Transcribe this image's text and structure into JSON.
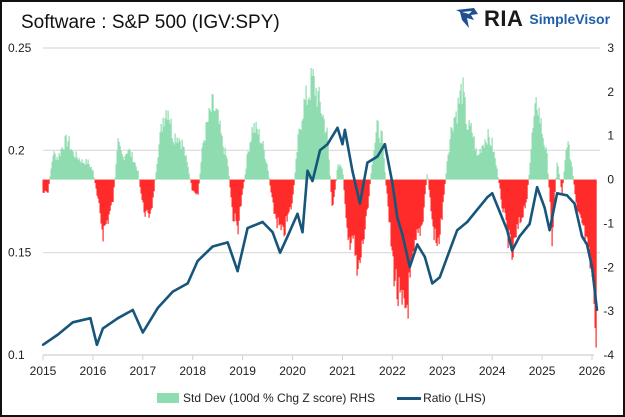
{
  "chart_data": {
    "type": "bar+line",
    "title": "Software : S&P 500 (IGV:SPY)",
    "logo": {
      "text": "RIA",
      "subtext": "SimpleVisor"
    },
    "x_ticks": [
      "2015",
      "2016",
      "2017",
      "2018",
      "2019",
      "2020",
      "2021",
      "2022",
      "2023",
      "2024",
      "2025",
      "2026"
    ],
    "xlim": [
      2015,
      2026.1
    ],
    "left_axis": {
      "ylim": [
        0.1,
        0.25
      ],
      "ticks": [
        "0.1",
        "0.15",
        "0.2",
        "0.25"
      ]
    },
    "right_axis": {
      "ylim": [
        -4,
        3
      ],
      "ticks": [
        "3",
        "2",
        "1",
        "0",
        "-1",
        "-2",
        "-3",
        "-4"
      ]
    },
    "grid": "horizontal",
    "legend_position": "bottom",
    "colors": {
      "positive": "#8fdcb0",
      "negative": "#ff2a2a",
      "ratio": "#17567a"
    },
    "series": [
      {
        "name": "Std Dev (100d % Chg Z score) RHS",
        "type": "bar",
        "axis": "right",
        "points": [
          [
            2015.0,
            -0.3
          ],
          [
            2015.1,
            -0.3
          ],
          [
            2015.2,
            0.6
          ],
          [
            2015.3,
            0.5
          ],
          [
            2015.4,
            0.8
          ],
          [
            2015.5,
            0.9
          ],
          [
            2015.6,
            0.6
          ],
          [
            2015.7,
            0.5
          ],
          [
            2015.8,
            0.4
          ],
          [
            2015.9,
            0.4
          ],
          [
            2016.0,
            0.2
          ],
          [
            2016.1,
            -0.5
          ],
          [
            2016.2,
            -1.2
          ],
          [
            2016.3,
            -0.9
          ],
          [
            2016.4,
            -0.5
          ],
          [
            2016.5,
            0.8
          ],
          [
            2016.6,
            0.5
          ],
          [
            2016.7,
            0.7
          ],
          [
            2016.8,
            0.5
          ],
          [
            2016.9,
            0.2
          ],
          [
            2017.0,
            -0.6
          ],
          [
            2017.1,
            -0.9
          ],
          [
            2017.2,
            -0.5
          ],
          [
            2017.3,
            0.6
          ],
          [
            2017.4,
            1.4
          ],
          [
            2017.5,
            1.7
          ],
          [
            2017.6,
            1.0
          ],
          [
            2017.7,
            1.0
          ],
          [
            2017.8,
            0.8
          ],
          [
            2017.9,
            0.3
          ],
          [
            2018.0,
            -0.3
          ],
          [
            2018.1,
            -0.4
          ],
          [
            2018.2,
            0.8
          ],
          [
            2018.3,
            1.3
          ],
          [
            2018.4,
            1.7
          ],
          [
            2018.5,
            1.4
          ],
          [
            2018.6,
            0.8
          ],
          [
            2018.7,
            0.4
          ],
          [
            2018.8,
            -0.8
          ],
          [
            2018.9,
            -1.1
          ],
          [
            2019.0,
            -0.3
          ],
          [
            2019.1,
            0.6
          ],
          [
            2019.2,
            1.2
          ],
          [
            2019.3,
            1.1
          ],
          [
            2019.4,
            0.8
          ],
          [
            2019.5,
            0.3
          ],
          [
            2019.6,
            -0.6
          ],
          [
            2019.7,
            -1.0
          ],
          [
            2019.8,
            -1.3
          ],
          [
            2019.9,
            -0.9
          ],
          [
            2020.0,
            -0.5
          ],
          [
            2020.1,
            0.8
          ],
          [
            2020.2,
            1.6
          ],
          [
            2020.3,
            1.9
          ],
          [
            2020.4,
            2.3
          ],
          [
            2020.5,
            1.9
          ],
          [
            2020.6,
            1.5
          ],
          [
            2020.7,
            1.0
          ],
          [
            2020.8,
            -0.8
          ],
          [
            2020.9,
            0.3
          ],
          [
            2021.0,
            0.3
          ],
          [
            2021.1,
            -1.5
          ],
          [
            2021.2,
            -1.2
          ],
          [
            2021.3,
            -2.3
          ],
          [
            2021.4,
            -1.5
          ],
          [
            2021.5,
            -0.8
          ],
          [
            2021.6,
            0.5
          ],
          [
            2021.7,
            1.2
          ],
          [
            2021.8,
            0.9
          ],
          [
            2021.9,
            -0.5
          ],
          [
            2022.0,
            -1.8
          ],
          [
            2022.1,
            -2.6
          ],
          [
            2022.2,
            -3.1
          ],
          [
            2022.3,
            -2.8
          ],
          [
            2022.4,
            -2.0
          ],
          [
            2022.5,
            -1.3
          ],
          [
            2022.6,
            -1.0
          ],
          [
            2022.7,
            0.2
          ],
          [
            2022.8,
            -1.0
          ],
          [
            2022.9,
            -1.6
          ],
          [
            2023.0,
            -0.8
          ],
          [
            2023.1,
            0.5
          ],
          [
            2023.2,
            1.3
          ],
          [
            2023.3,
            1.6
          ],
          [
            2023.4,
            2.1
          ],
          [
            2023.5,
            1.2
          ],
          [
            2023.6,
            1.1
          ],
          [
            2023.7,
            0.5
          ],
          [
            2023.8,
            0.8
          ],
          [
            2023.9,
            1.0
          ],
          [
            2024.0,
            0.8
          ],
          [
            2024.1,
            0.2
          ],
          [
            2024.2,
            -0.6
          ],
          [
            2024.3,
            -1.2
          ],
          [
            2024.4,
            -1.8
          ],
          [
            2024.5,
            -1.2
          ],
          [
            2024.6,
            -0.8
          ],
          [
            2024.7,
            -0.4
          ],
          [
            2024.8,
            1.0
          ],
          [
            2024.9,
            1.8
          ],
          [
            2025.0,
            1.1
          ],
          [
            2025.1,
            0.5
          ],
          [
            2025.2,
            -1.3
          ],
          [
            2025.3,
            0.4
          ],
          [
            2025.4,
            -0.3
          ],
          [
            2025.5,
            0.9
          ],
          [
            2025.6,
            0.3
          ],
          [
            2025.7,
            -0.8
          ],
          [
            2025.8,
            -1.0
          ],
          [
            2025.9,
            -1.6
          ],
          [
            2026.0,
            -2.2
          ],
          [
            2026.1,
            -3.5
          ]
        ]
      },
      {
        "name": "Ratio (LHS)",
        "type": "line",
        "axis": "left",
        "points": [
          [
            2015.0,
            0.105
          ],
          [
            2015.3,
            0.11
          ],
          [
            2015.6,
            0.116
          ],
          [
            2015.95,
            0.118
          ],
          [
            2016.08,
            0.105
          ],
          [
            2016.2,
            0.113
          ],
          [
            2016.5,
            0.118
          ],
          [
            2016.8,
            0.122
          ],
          [
            2017.0,
            0.111
          ],
          [
            2017.3,
            0.123
          ],
          [
            2017.6,
            0.131
          ],
          [
            2017.9,
            0.135
          ],
          [
            2018.1,
            0.146
          ],
          [
            2018.4,
            0.153
          ],
          [
            2018.7,
            0.155
          ],
          [
            2018.9,
            0.141
          ],
          [
            2019.1,
            0.162
          ],
          [
            2019.4,
            0.165
          ],
          [
            2019.6,
            0.16
          ],
          [
            2019.75,
            0.15
          ],
          [
            2019.9,
            0.158
          ],
          [
            2020.1,
            0.169
          ],
          [
            2020.2,
            0.16
          ],
          [
            2020.3,
            0.19
          ],
          [
            2020.4,
            0.185
          ],
          [
            2020.55,
            0.2
          ],
          [
            2020.7,
            0.203
          ],
          [
            2020.9,
            0.211
          ],
          [
            2021.0,
            0.203
          ],
          [
            2021.05,
            0.21
          ],
          [
            2021.2,
            0.19
          ],
          [
            2021.35,
            0.174
          ],
          [
            2021.5,
            0.194
          ],
          [
            2021.7,
            0.197
          ],
          [
            2021.85,
            0.203
          ],
          [
            2022.0,
            0.184
          ],
          [
            2022.1,
            0.167
          ],
          [
            2022.2,
            0.159
          ],
          [
            2022.35,
            0.143
          ],
          [
            2022.5,
            0.154
          ],
          [
            2022.65,
            0.148
          ],
          [
            2022.8,
            0.135
          ],
          [
            2022.95,
            0.138
          ],
          [
            2023.1,
            0.148
          ],
          [
            2023.3,
            0.161
          ],
          [
            2023.5,
            0.165
          ],
          [
            2023.7,
            0.171
          ],
          [
            2023.9,
            0.177
          ],
          [
            2024.0,
            0.179
          ],
          [
            2024.15,
            0.17
          ],
          [
            2024.3,
            0.161
          ],
          [
            2024.4,
            0.151
          ],
          [
            2024.55,
            0.158
          ],
          [
            2024.75,
            0.164
          ],
          [
            2024.9,
            0.182
          ],
          [
            2025.05,
            0.172
          ],
          [
            2025.15,
            0.161
          ],
          [
            2025.3,
            0.179
          ],
          [
            2025.5,
            0.178
          ],
          [
            2025.65,
            0.174
          ],
          [
            2025.8,
            0.158
          ],
          [
            2025.9,
            0.154
          ],
          [
            2026.0,
            0.143
          ],
          [
            2026.1,
            0.122
          ]
        ]
      }
    ]
  }
}
